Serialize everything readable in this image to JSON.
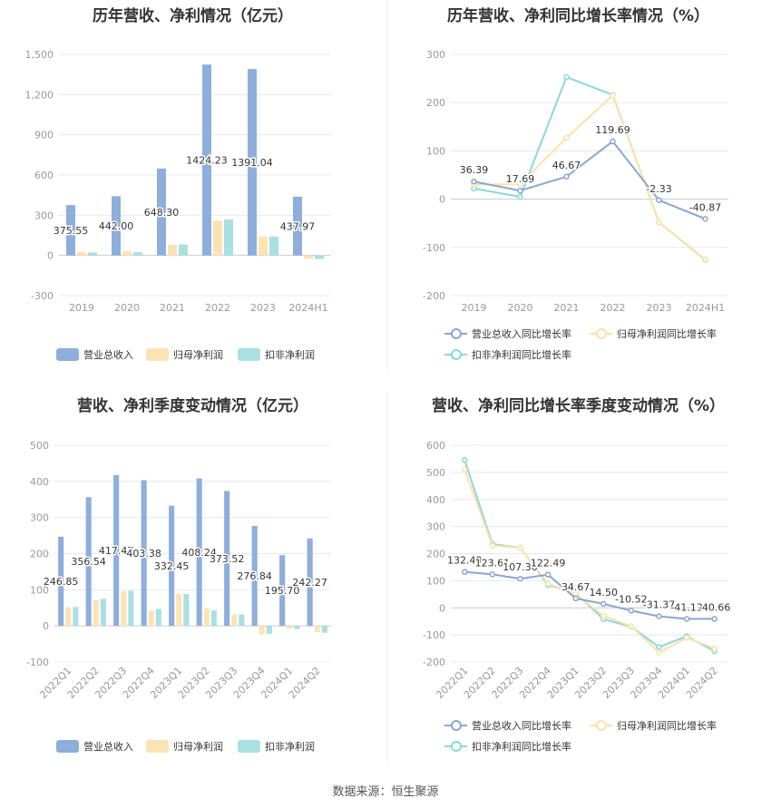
{
  "source_label": "数据来源：恒生聚源",
  "colors": {
    "revenue": "#8eaedc",
    "net_profit": "#fde3b4",
    "deducted_profit": "#a9e0e2",
    "line_revenue": "#8aa6d3",
    "line_net": "#fde1a9",
    "line_deducted": "#8ad8d8"
  },
  "chart_data": [
    {
      "type": "bar",
      "title": "历年营收、净利情况（亿元）",
      "categories": [
        "2019",
        "2020",
        "2021",
        "2022",
        "2023",
        "2024H1"
      ],
      "ylim": [
        -300,
        1500
      ],
      "yticks": [
        -300,
        0,
        300,
        600,
        900,
        1200,
        1500
      ],
      "ytick_labels": [
        "-300",
        "0",
        "300",
        "600",
        "900",
        "1,200",
        "1,500"
      ],
      "series": [
        {
          "name": "营业总收入",
          "values": [
            375.55,
            442.0,
            648.3,
            1424.23,
            1391.04,
            437.97
          ],
          "labels": [
            "375.55",
            "442.00",
            "648.30",
            "1424.23",
            "1391.04",
            "437.97"
          ]
        },
        {
          "name": "归母净利润",
          "values": [
            26,
            32,
            80,
            260,
            140,
            -25
          ]
        },
        {
          "name": "扣非净利润",
          "values": [
            22,
            24,
            82,
            268,
            140,
            -27
          ]
        }
      ],
      "grid": true,
      "legend": "bottom"
    },
    {
      "type": "line",
      "title": "历年营收、净利同比增长率情况（%）",
      "categories": [
        "2019",
        "2020",
        "2021",
        "2022",
        "2023",
        "2024H1"
      ],
      "ylim": [
        -200,
        300
      ],
      "yticks": [
        -200,
        -100,
        0,
        100,
        200,
        300
      ],
      "ytick_labels": [
        "-200",
        "-100",
        "0",
        "100",
        "200",
        "300"
      ],
      "series": [
        {
          "name": "营业总收入同比增长率",
          "values": [
            36.39,
            17.69,
            46.67,
            119.69,
            -2.33,
            -40.87
          ],
          "labels": [
            "36.39",
            "17.69",
            "46.67",
            "119.69",
            "-2.33",
            "-40.87"
          ]
        },
        {
          "name": "归母净利润同比增长率",
          "values": [
            30,
            31,
            127,
            215,
            -48,
            -125
          ]
        },
        {
          "name": "扣非净利润同比增长率",
          "values": [
            22,
            5,
            253,
            216,
            -48,
            -126
          ]
        }
      ],
      "grid": true,
      "legend": "bottom"
    },
    {
      "type": "bar",
      "title": "营收、净利季度变动情况（亿元）",
      "categories": [
        "2022Q1",
        "2022Q2",
        "2022Q3",
        "2022Q4",
        "2023Q1",
        "2023Q2",
        "2023Q3",
        "2023Q4",
        "2024Q1",
        "2024Q2"
      ],
      "ylim": [
        -100,
        500
      ],
      "yticks": [
        -100,
        0,
        100,
        200,
        300,
        400,
        500
      ],
      "ytick_labels": [
        "-100",
        "0",
        "100",
        "200",
        "300",
        "400",
        "500"
      ],
      "series": [
        {
          "name": "营业总收入",
          "values": [
            246.85,
            356.54,
            417.47,
            403.38,
            332.45,
            408.24,
            373.52,
            276.84,
            195.7,
            242.27
          ],
          "labels": [
            "246.85",
            "356.54",
            "417.47",
            "403.38",
            "332.45",
            "408.24",
            "373.52",
            "276.84",
            "195.70",
            "242.27"
          ]
        },
        {
          "name": "归母净利润",
          "values": [
            52,
            71,
            96,
            42,
            88,
            48,
            32,
            -24,
            -7,
            -18
          ]
        },
        {
          "name": "扣非净利润",
          "values": [
            52,
            75,
            97,
            47,
            88,
            43,
            32,
            -22,
            -9,
            -19
          ]
        }
      ],
      "grid": true,
      "legend": "bottom"
    },
    {
      "type": "line",
      "title": "营收、净利同比增长率季度变动情况（%）",
      "categories": [
        "2022Q1",
        "2022Q2",
        "2022Q3",
        "2022Q4",
        "2023Q1",
        "2023Q2",
        "2023Q3",
        "2023Q4",
        "2024Q1",
        "2024Q2"
      ],
      "ylim": [
        -200,
        600
      ],
      "yticks": [
        -200,
        -100,
        0,
        100,
        200,
        300,
        400,
        500,
        600
      ],
      "ytick_labels": [
        "-200",
        "-100",
        "0",
        "100",
        "200",
        "300",
        "400",
        "500",
        "600"
      ],
      "series": [
        {
          "name": "营业总收入同比增长率",
          "values": [
            132.49,
            123.61,
            107.3,
            122.49,
            34.67,
            14.5,
            -10.52,
            -31.37,
            -41.13,
            -40.66
          ],
          "labels": [
            "132.49",
            "123.61",
            "107.30",
            "122.49",
            "34.67",
            "14.50",
            "-10.52",
            "-31.37",
            "-41.13",
            "-40.66"
          ]
        },
        {
          "name": "归母净利润同比增长率",
          "values": [
            510,
            230,
            222,
            88,
            52,
            -30,
            -68,
            -165,
            -110,
            -150
          ]
        },
        {
          "name": "扣非净利润同比增长率",
          "values": [
            545,
            235,
            222,
            84,
            55,
            -42,
            -70,
            -145,
            -105,
            -160
          ]
        }
      ],
      "grid": true,
      "legend": "bottom"
    }
  ]
}
